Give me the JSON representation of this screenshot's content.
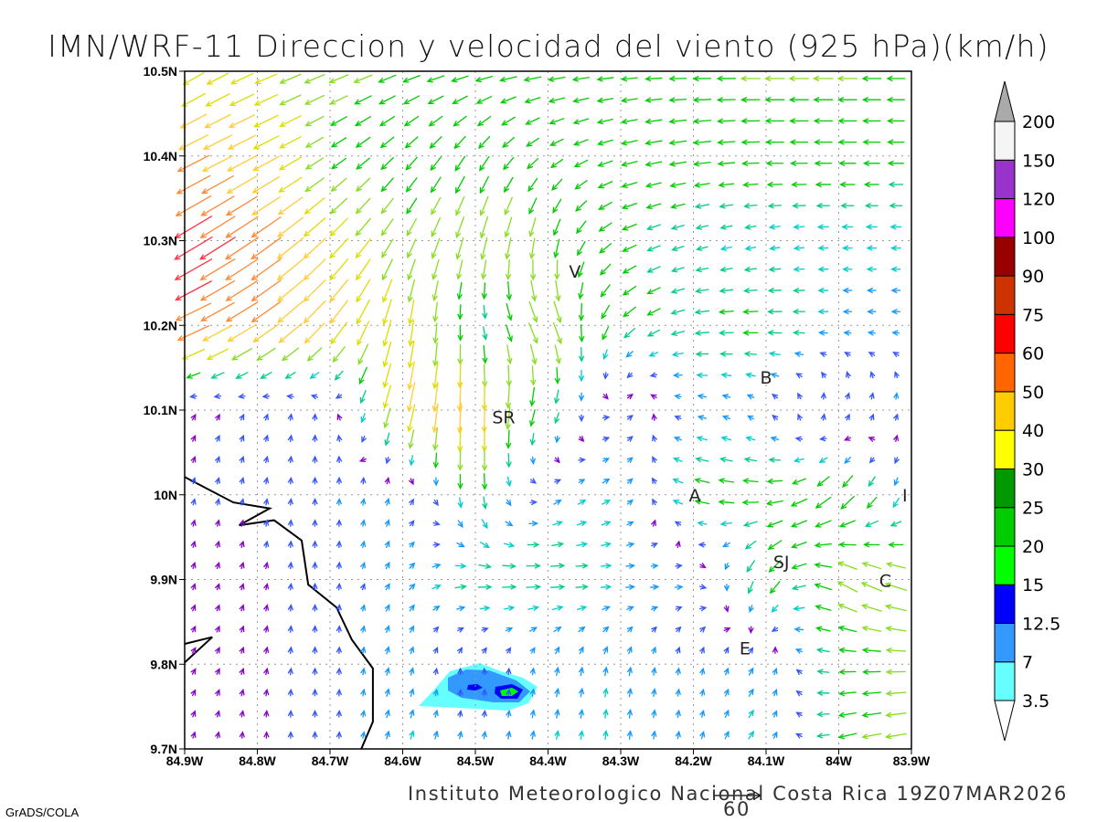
{
  "title": "IMN/WRF-11 Direccion y velocidad del viento (925 hPa)(km/h)",
  "footer": "Instituto Meteorologico Nacional Costa Rica 19Z07MAR2026",
  "credit": "GrADS/COLA",
  "reference_vector": {
    "label": "60",
    "speed": 60
  },
  "chart_data": {
    "type": "vector-field",
    "xlim": [
      -84.9,
      -83.9
    ],
    "ylim": [
      9.7,
      10.5
    ],
    "x_ticks": [
      -84.9,
      -84.8,
      -84.7,
      -84.6,
      -84.5,
      -84.4,
      -84.3,
      -84.2,
      -84.1,
      -84.0,
      -83.9
    ],
    "x_tick_labels": [
      "84.9W",
      "84.8W",
      "84.7W",
      "84.6W",
      "84.5W",
      "84.4W",
      "84.3W",
      "84.2W",
      "84.1W",
      "84W",
      "83.9W"
    ],
    "y_ticks": [
      10.5,
      10.4,
      10.3,
      10.2,
      10.1,
      10.0,
      9.9,
      9.8,
      9.7
    ],
    "y_tick_labels": [
      "10.5N",
      "10.4N",
      "10.3N",
      "10.2N",
      "10.1N",
      "10N",
      "9.9N",
      "9.8N",
      "9.7N"
    ],
    "grid": true,
    "wind_uv": [
      [
        [
          -25,
          -15
        ],
        [
          -28,
          -12
        ],
        [
          -25,
          -10
        ],
        [
          -22,
          -8
        ],
        [
          -22,
          -5
        ],
        [
          -22,
          -3
        ],
        [
          -20,
          -2
        ],
        [
          -22,
          0
        ],
        [
          -25,
          0
        ],
        [
          -25,
          0
        ],
        [
          -22,
          0
        ]
      ],
      [
        [
          -40,
          -20
        ],
        [
          -35,
          -18
        ],
        [
          -18,
          -12
        ],
        [
          -15,
          -15
        ],
        [
          -12,
          -18
        ],
        [
          -15,
          -10
        ],
        [
          -20,
          -5
        ],
        [
          -22,
          -3
        ],
        [
          -22,
          0
        ],
        [
          -22,
          0
        ],
        [
          -20,
          0
        ]
      ],
      [
        [
          -50,
          -30
        ],
        [
          -40,
          -28
        ],
        [
          -25,
          -25
        ],
        [
          -12,
          -22
        ],
        [
          -8,
          -30
        ],
        [
          -5,
          -25
        ],
        [
          -18,
          -8
        ],
        [
          -14,
          -4
        ],
        [
          -12,
          -2
        ],
        [
          -12,
          0
        ],
        [
          -12,
          0
        ]
      ],
      [
        [
          -45,
          -20
        ],
        [
          -38,
          -25
        ],
        [
          -25,
          -30
        ],
        [
          -5,
          -35
        ],
        [
          2,
          -12
        ],
        [
          15,
          -30
        ],
        [
          -15,
          -15
        ],
        [
          -18,
          -2
        ],
        [
          -20,
          0
        ],
        [
          -10,
          0
        ],
        [
          -10,
          0
        ]
      ],
      [
        [
          2,
          3
        ],
        [
          2,
          4
        ],
        [
          0,
          8
        ],
        [
          -10,
          -38
        ],
        [
          0,
          -42
        ],
        [
          -8,
          -18
        ],
        [
          8,
          5
        ],
        [
          -10,
          2
        ],
        [
          -5,
          5
        ],
        [
          5,
          8
        ],
        [
          3,
          10
        ]
      ],
      [
        [
          1,
          4
        ],
        [
          1,
          4
        ],
        [
          0,
          8
        ],
        [
          3,
          9
        ],
        [
          0,
          -20
        ],
        [
          8,
          6
        ],
        [
          10,
          6
        ],
        [
          -20,
          5
        ],
        [
          -22,
          0
        ],
        [
          -18,
          -20
        ],
        [
          -2,
          -12
        ]
      ],
      [
        [
          1,
          3
        ],
        [
          1,
          3
        ],
        [
          0,
          7
        ],
        [
          6,
          8
        ],
        [
          18,
          0
        ],
        [
          20,
          0
        ],
        [
          12,
          0
        ],
        [
          10,
          0
        ],
        [
          -12,
          -22
        ],
        [
          -25,
          15
        ],
        [
          -28,
          8
        ]
      ],
      [
        [
          2,
          3
        ],
        [
          1,
          3
        ],
        [
          0,
          7
        ],
        [
          3,
          10
        ],
        [
          -1,
          3
        ],
        [
          2,
          10
        ],
        [
          2,
          11
        ],
        [
          1,
          8
        ],
        [
          6,
          9
        ],
        [
          -20,
          0
        ],
        [
          -25,
          0
        ]
      ],
      [
        [
          1,
          3
        ],
        [
          0,
          3
        ],
        [
          0,
          6
        ],
        [
          4,
          11
        ],
        [
          2,
          10
        ],
        [
          2,
          11
        ],
        [
          1,
          11
        ],
        [
          2,
          9
        ],
        [
          8,
          10
        ],
        [
          -22,
          -6
        ],
        [
          -28,
          -5
        ]
      ]
    ],
    "arrow_colors": [
      {
        "max": 4,
        "color": "#8800cc"
      },
      {
        "max": 8,
        "color": "#3355ff"
      },
      {
        "max": 11,
        "color": "#1199ff"
      },
      {
        "max": 14,
        "color": "#00cccc"
      },
      {
        "max": 18,
        "color": "#00cc88"
      },
      {
        "max": 24,
        "color": "#00cc00"
      },
      {
        "max": 30,
        "color": "#88dd22"
      },
      {
        "max": 36,
        "color": "#dddd00"
      },
      {
        "max": 44,
        "color": "#ffcc33"
      },
      {
        "max": 52,
        "color": "#ff8833"
      },
      {
        "max": 60,
        "color": "#ff3344"
      },
      {
        "max": 999,
        "color": "#ff0066"
      }
    ],
    "colorbar": {
      "levels": [
        "3.5",
        "7",
        "12.5",
        "15",
        "20",
        "25",
        "30",
        "40",
        "50",
        "60",
        "75",
        "90",
        "100",
        "120",
        "150",
        "200"
      ],
      "colors": [
        "#66ffff",
        "#3399ff",
        "#0000ff",
        "#00ff00",
        "#00cc00",
        "#009900",
        "#ffff00",
        "#ffcc00",
        "#ff6600",
        "#ff0000",
        "#cc3300",
        "#990000",
        "#ff00ff",
        "#9933cc",
        "#f5f5f5"
      ],
      "over_color": "#aaaaaa",
      "under_color": "#ffffff"
    },
    "coastline": [
      [
        [
          -84.9,
          10.021
        ],
        [
          -84.833,
          9.991
        ],
        [
          -84.783,
          9.984
        ],
        [
          -84.825,
          9.964
        ],
        [
          -84.777,
          9.97
        ],
        [
          -84.739,
          9.946
        ],
        [
          -84.73,
          9.894
        ],
        [
          -84.691,
          9.867
        ],
        [
          -84.67,
          9.829
        ],
        [
          -84.641,
          9.795
        ],
        [
          -84.641,
          9.732
        ],
        [
          -84.657,
          9.7
        ]
      ],
      [
        [
          -84.9,
          9.824
        ],
        [
          -84.862,
          9.832
        ],
        [
          -84.9,
          9.802
        ]
      ]
    ],
    "cities": [
      {
        "label": "V",
        "lon": -84.363,
        "lat": 10.264
      },
      {
        "label": "SR",
        "lon": -84.461,
        "lat": 10.092
      },
      {
        "label": "B",
        "lon": -84.1,
        "lat": 10.139
      },
      {
        "label": "A",
        "lon": -84.198,
        "lat": 10.0
      },
      {
        "label": "I",
        "lon": -83.909,
        "lat": 10.0
      },
      {
        "label": "SJ",
        "lon": -84.079,
        "lat": 9.921
      },
      {
        "label": "C",
        "lon": -83.936,
        "lat": 9.899
      },
      {
        "label": "E",
        "lon": -84.129,
        "lat": 9.819
      }
    ]
  }
}
